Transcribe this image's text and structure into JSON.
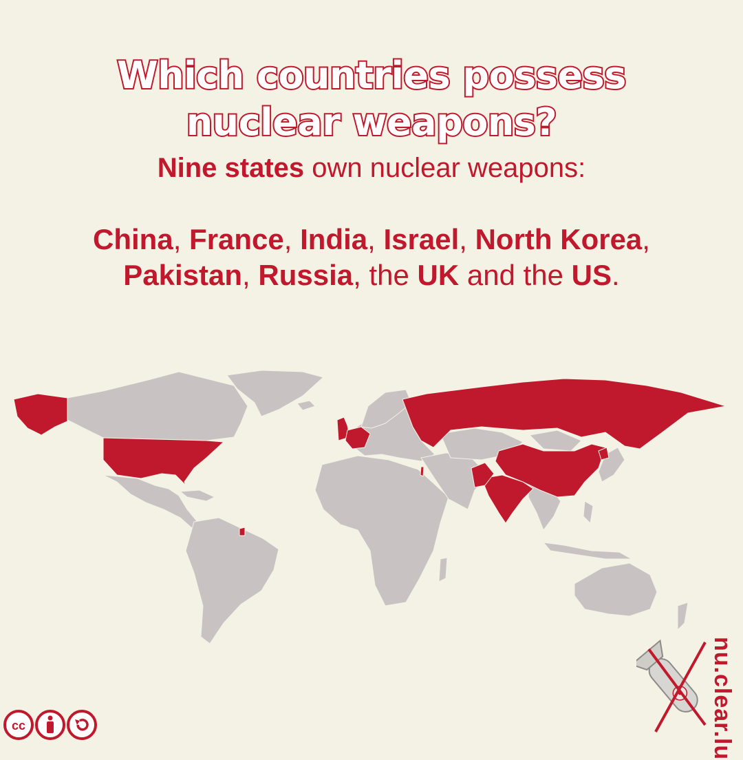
{
  "title": {
    "line1": "Which countries possess",
    "line2": "nuclear weapons?"
  },
  "subtitle": {
    "bold": "Nine states",
    "rest": " own nuclear weapons:"
  },
  "countries_text": {
    "china": "China",
    "sep1": ", ",
    "france": "France",
    "sep2": ", ",
    "india": "India",
    "sep3": ", ",
    "israel": "Israel",
    "sep4": ", ",
    "north_korea": "North Korea",
    "sep5": ",",
    "pakistan": "Pakistan",
    "sep6": ", ",
    "russia": "Russia",
    "sep7": ", the ",
    "uk": "UK",
    "sep8": " and the ",
    "us": "US",
    "end": "."
  },
  "map": {
    "highlight_color": "#c0182c",
    "other_color": "#c9c2c2",
    "background": "#f3f2e5",
    "highlighted_countries": [
      "US",
      "UK",
      "France",
      "Russia",
      "China",
      "India",
      "Pakistan",
      "Israel",
      "North Korea"
    ]
  },
  "brand": "nu.clear.lu",
  "license": {
    "icons": [
      "cc-icon",
      "attribution-icon",
      "share-alike-icon"
    ],
    "cc_text": "cc"
  }
}
